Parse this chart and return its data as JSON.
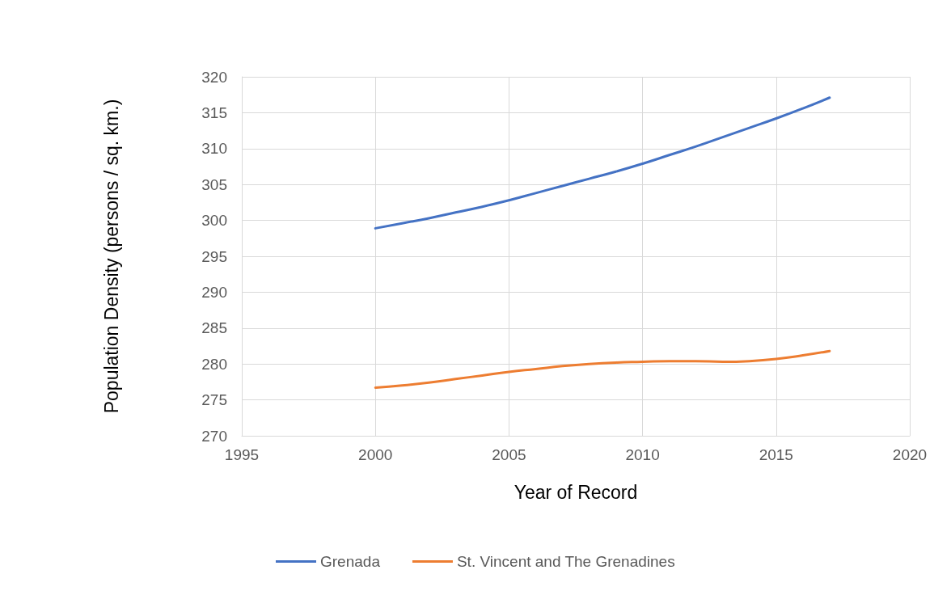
{
  "chart_data": {
    "type": "line",
    "xlabel": "Year of Record",
    "ylabel": "Population Density (persons / sq. km.)",
    "x": [
      2000,
      2001,
      2002,
      2003,
      2004,
      2005,
      2006,
      2007,
      2008,
      2009,
      2010,
      2011,
      2012,
      2013,
      2014,
      2015,
      2016,
      2017
    ],
    "series": [
      {
        "name": "Grenada",
        "color": "#4472c4",
        "values": [
          298.9,
          299.6,
          300.3,
          301.1,
          301.9,
          302.8,
          303.8,
          304.8,
          305.8,
          306.8,
          307.9,
          309.1,
          310.3,
          311.6,
          312.9,
          314.2,
          315.6,
          317.1
        ]
      },
      {
        "name": "St. Vincent and The Grenadines",
        "color": "#ed7d31",
        "values": [
          276.7,
          277.0,
          277.4,
          277.9,
          278.4,
          278.9,
          279.3,
          279.7,
          280.0,
          280.2,
          280.3,
          280.4,
          280.4,
          280.3,
          280.4,
          280.7,
          281.2,
          281.8
        ]
      }
    ],
    "xlim": [
      1995,
      2020
    ],
    "xticks": [
      1995,
      2000,
      2005,
      2010,
      2015,
      2020
    ],
    "ylim": [
      270,
      320
    ],
    "yticks": [
      270,
      275,
      280,
      285,
      290,
      295,
      300,
      305,
      310,
      315,
      320
    ],
    "grid": true,
    "legend": "bottom",
    "marker": "none",
    "line_style": "solid"
  }
}
